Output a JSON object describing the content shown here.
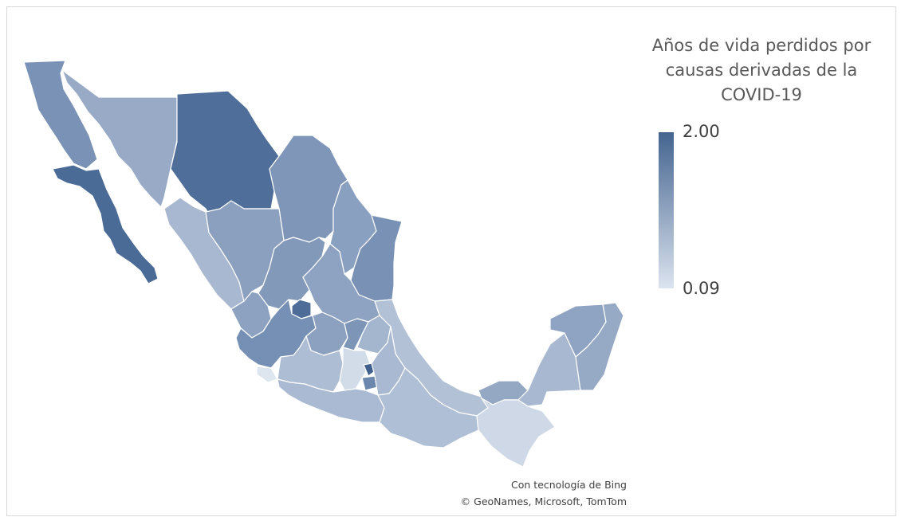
{
  "legend": {
    "title_lines": [
      "Años de vida perdidos por",
      "causas derivadas de la",
      "COVID-19"
    ],
    "max_label": "2.00",
    "min_label": "0.09",
    "color_high": "#44648f",
    "color_low": "#dbe3ef"
  },
  "credits": {
    "line1": "Con tecnología de Bing",
    "line2": "© GeoNames, Microsoft, TomTom"
  }
}
